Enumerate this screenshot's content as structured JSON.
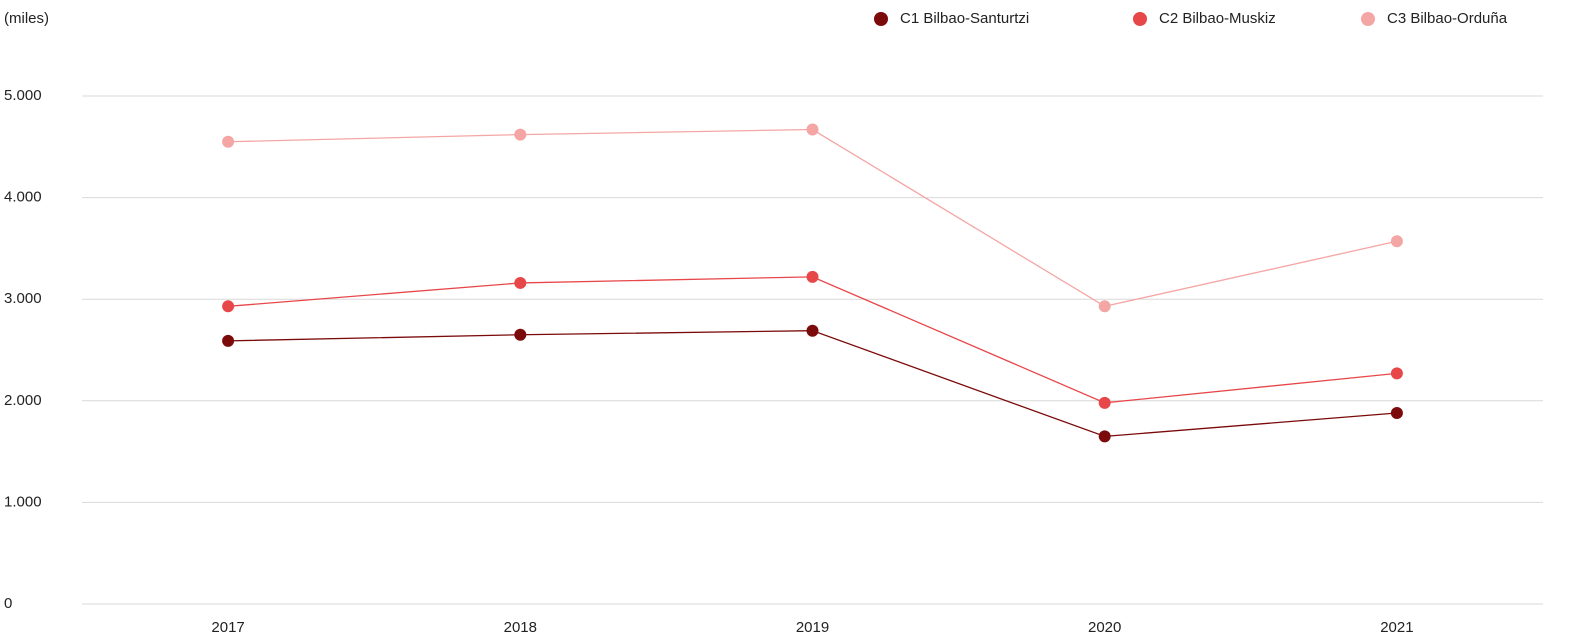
{
  "chart_data": {
    "type": "line",
    "y_label": "(miles)",
    "categories": [
      "2017",
      "2018",
      "2019",
      "2020",
      "2021"
    ],
    "series": [
      {
        "name": "C1 Bilbao-Santurtzi",
        "color": "#7b0a0a",
        "values": [
          2590,
          2650,
          2690,
          1650,
          1880
        ]
      },
      {
        "name": "C2 Bilbao-Muskiz",
        "color": "#e8474a",
        "values": [
          2930,
          3160,
          3220,
          1980,
          2270
        ]
      },
      {
        "name": "C3 Bilbao-Orduña",
        "color": "#f4a6a4",
        "values": [
          4550,
          4620,
          4670,
          2930,
          3570
        ]
      }
    ],
    "ylim": [
      0,
      5000
    ],
    "yticks": [
      0,
      {
        "value": 1000,
        "label": "1.000"
      },
      {
        "value": 2000,
        "label": "2.000"
      },
      {
        "value": 3000,
        "label": "3.000"
      },
      {
        "value": 4000,
        "label": "4.000"
      },
      {
        "value": 5000,
        "label": "5.000"
      }
    ],
    "grid": true,
    "legend": "top-right"
  }
}
